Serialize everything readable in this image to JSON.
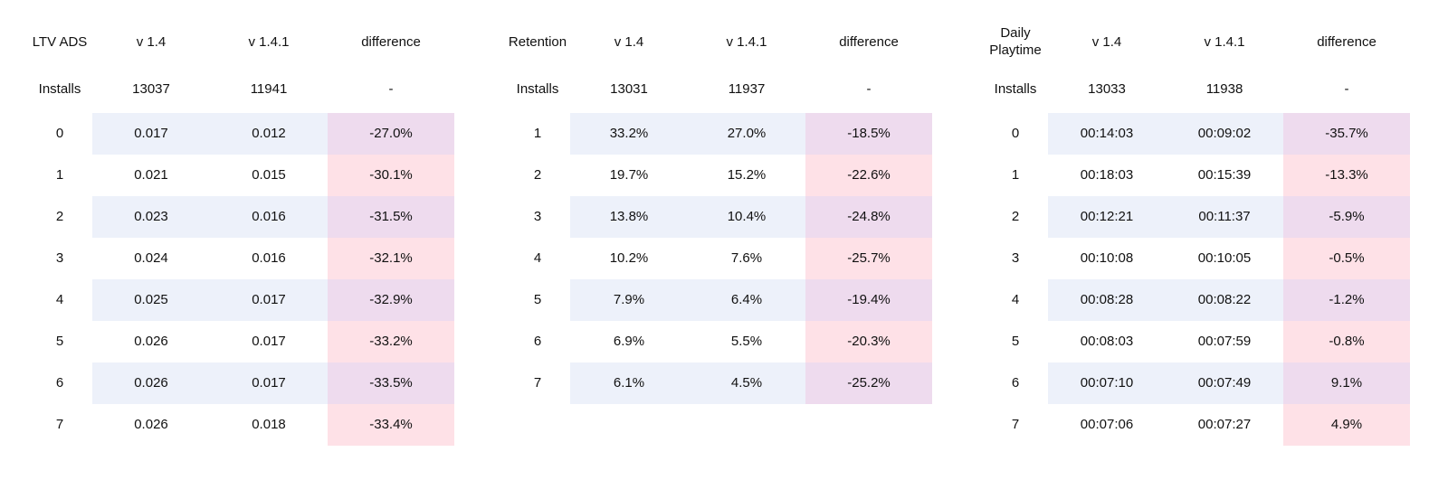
{
  "colors": {
    "stripe_blue": "#edf1fa",
    "diff_mauve": "#eedbee",
    "diff_pink": "#fee1e7",
    "text": "#111111",
    "background": "#ffffff"
  },
  "chart_data": [
    {
      "type": "table",
      "title": "LTV ADS",
      "columns": [
        "v 1.4",
        "v 1.4.1",
        "difference"
      ],
      "installs": {
        "label": "Installs",
        "values": [
          "13037",
          "11941",
          "-"
        ]
      },
      "rows": [
        {
          "label": "0",
          "values": [
            "0.017",
            "0.012",
            "-27.0%"
          ]
        },
        {
          "label": "1",
          "values": [
            "0.021",
            "0.015",
            "-30.1%"
          ]
        },
        {
          "label": "2",
          "values": [
            "0.023",
            "0.016",
            "-31.5%"
          ]
        },
        {
          "label": "3",
          "values": [
            "0.024",
            "0.016",
            "-32.1%"
          ]
        },
        {
          "label": "4",
          "values": [
            "0.025",
            "0.017",
            "-32.9%"
          ]
        },
        {
          "label": "5",
          "values": [
            "0.026",
            "0.017",
            "-33.2%"
          ]
        },
        {
          "label": "6",
          "values": [
            "0.026",
            "0.017",
            "-33.5%"
          ]
        },
        {
          "label": "7",
          "values": [
            "0.026",
            "0.018",
            "-33.4%"
          ]
        }
      ]
    },
    {
      "type": "table",
      "title": "Retention",
      "columns": [
        "v 1.4",
        "v 1.4.1",
        "difference"
      ],
      "installs": {
        "label": "Installs",
        "values": [
          "13031",
          "11937",
          "-"
        ]
      },
      "rows": [
        {
          "label": "1",
          "values": [
            "33.2%",
            "27.0%",
            "-18.5%"
          ]
        },
        {
          "label": "2",
          "values": [
            "19.7%",
            "15.2%",
            "-22.6%"
          ]
        },
        {
          "label": "3",
          "values": [
            "13.8%",
            "10.4%",
            "-24.8%"
          ]
        },
        {
          "label": "4",
          "values": [
            "10.2%",
            "7.6%",
            "-25.7%"
          ]
        },
        {
          "label": "5",
          "values": [
            "7.9%",
            "6.4%",
            "-19.4%"
          ]
        },
        {
          "label": "6",
          "values": [
            "6.9%",
            "5.5%",
            "-20.3%"
          ]
        },
        {
          "label": "7",
          "values": [
            "6.1%",
            "4.5%",
            "-25.2%"
          ]
        }
      ]
    },
    {
      "type": "table",
      "title": "Daily Playtime",
      "columns": [
        "v 1.4",
        "v 1.4.1",
        "difference"
      ],
      "installs": {
        "label": "Installs",
        "values": [
          "13033",
          "11938",
          "-"
        ]
      },
      "rows": [
        {
          "label": "0",
          "values": [
            "00:14:03",
            "00:09:02",
            "-35.7%"
          ]
        },
        {
          "label": "1",
          "values": [
            "00:18:03",
            "00:15:39",
            "-13.3%"
          ]
        },
        {
          "label": "2",
          "values": [
            "00:12:21",
            "00:11:37",
            "-5.9%"
          ]
        },
        {
          "label": "3",
          "values": [
            "00:10:08",
            "00:10:05",
            "-0.5%"
          ]
        },
        {
          "label": "4",
          "values": [
            "00:08:28",
            "00:08:22",
            "-1.2%"
          ]
        },
        {
          "label": "5",
          "values": [
            "00:08:03",
            "00:07:59",
            "-0.8%"
          ]
        },
        {
          "label": "6",
          "values": [
            "00:07:10",
            "00:07:49",
            "9.1%"
          ]
        },
        {
          "label": "7",
          "values": [
            "00:07:06",
            "00:07:27",
            "4.9%"
          ]
        }
      ]
    }
  ]
}
